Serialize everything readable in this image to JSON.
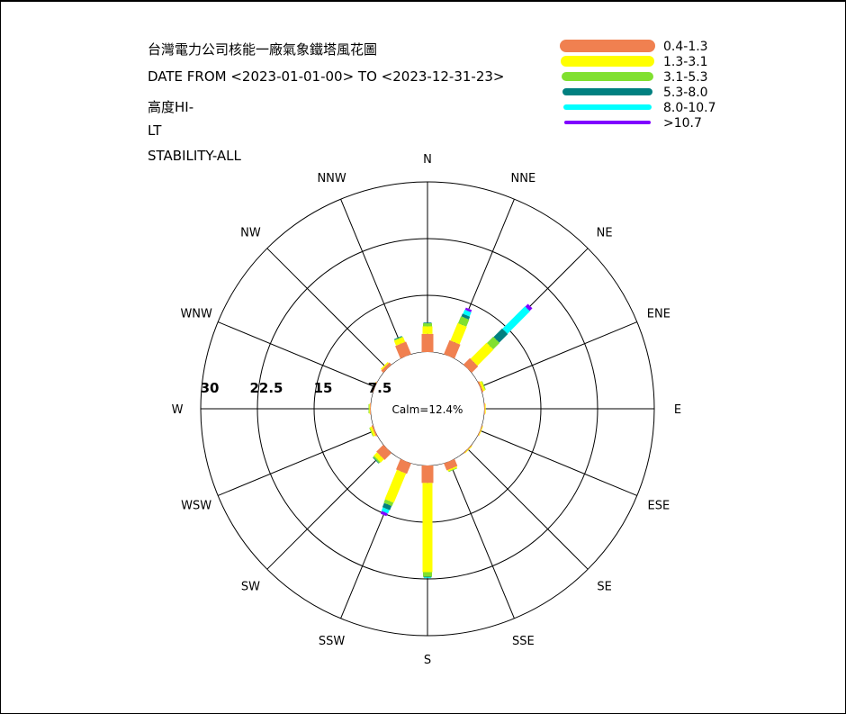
{
  "header": {
    "title": "台灣電力公司核能一廠氣象鐵塔風花圖",
    "date_range": "DATE FROM <2023-01-01-00> TO <2023-12-31-23>",
    "height": "高度HI-",
    "time": "LT",
    "stability": "STABILITY-ALL"
  },
  "chart_data": {
    "type": "windrose",
    "calm_label": "Calm=12.4%",
    "directions": [
      "N",
      "NNE",
      "NE",
      "ENE",
      "E",
      "ESE",
      "SE",
      "SSE",
      "S",
      "SSW",
      "SW",
      "WSW",
      "W",
      "WNW",
      "NW",
      "NNW"
    ],
    "ring_values": [
      7.5,
      15,
      22.5,
      30
    ],
    "ring_labels": [
      "7.5",
      "15",
      "22.5",
      "30"
    ],
    "calm_radius": 7.5,
    "legend": [
      {
        "label": "0.4-1.3",
        "color": "#F08050"
      },
      {
        "label": "1.3-3.1",
        "color": "#FFFF00"
      },
      {
        "label": "3.1-5.3",
        "color": "#80E030"
      },
      {
        "label": "5.3-8.0",
        "color": "#008080"
      },
      {
        "label": "8.0-10.7",
        "color": "#00FFFF"
      },
      {
        "label": ">10.7",
        "color": "#8000FF"
      }
    ],
    "frequencies": [
      [
        2.4,
        1.0,
        0.4,
        0.1,
        0.0,
        0.0
      ],
      [
        2.0,
        2.5,
        1.0,
        0.4,
        0.6,
        0.3
      ],
      [
        1.2,
        3.0,
        1.2,
        1.6,
        4.2,
        0.5
      ],
      [
        0.2,
        0.3,
        0.1,
        0.0,
        0.0,
        0.0
      ],
      [
        0.1,
        0.1,
        0.0,
        0.0,
        0.0,
        0.0
      ],
      [
        0.1,
        0.1,
        0.0,
        0.0,
        0.0,
        0.0
      ],
      [
        0.1,
        0.1,
        0.0,
        0.0,
        0.0,
        0.0
      ],
      [
        1.0,
        0.2,
        0.1,
        0.0,
        0.0,
        0.0
      ],
      [
        2.3,
        11.8,
        0.6,
        0.1,
        0.1,
        0.0
      ],
      [
        1.5,
        4.2,
        0.5,
        0.6,
        0.5,
        0.4
      ],
      [
        1.3,
        0.6,
        0.2,
        0.1,
        0.0,
        0.0
      ],
      [
        0.2,
        0.3,
        0.1,
        0.0,
        0.0,
        0.0
      ],
      [
        0.1,
        0.1,
        0.1,
        0.0,
        0.0,
        0.0
      ],
      [
        0.1,
        0.1,
        0.0,
        0.0,
        0.0,
        0.0
      ],
      [
        0.4,
        0.2,
        0.0,
        0.0,
        0.0,
        0.0
      ],
      [
        1.8,
        0.7,
        0.1,
        0.1,
        0.0,
        0.0
      ]
    ],
    "grid": true
  }
}
